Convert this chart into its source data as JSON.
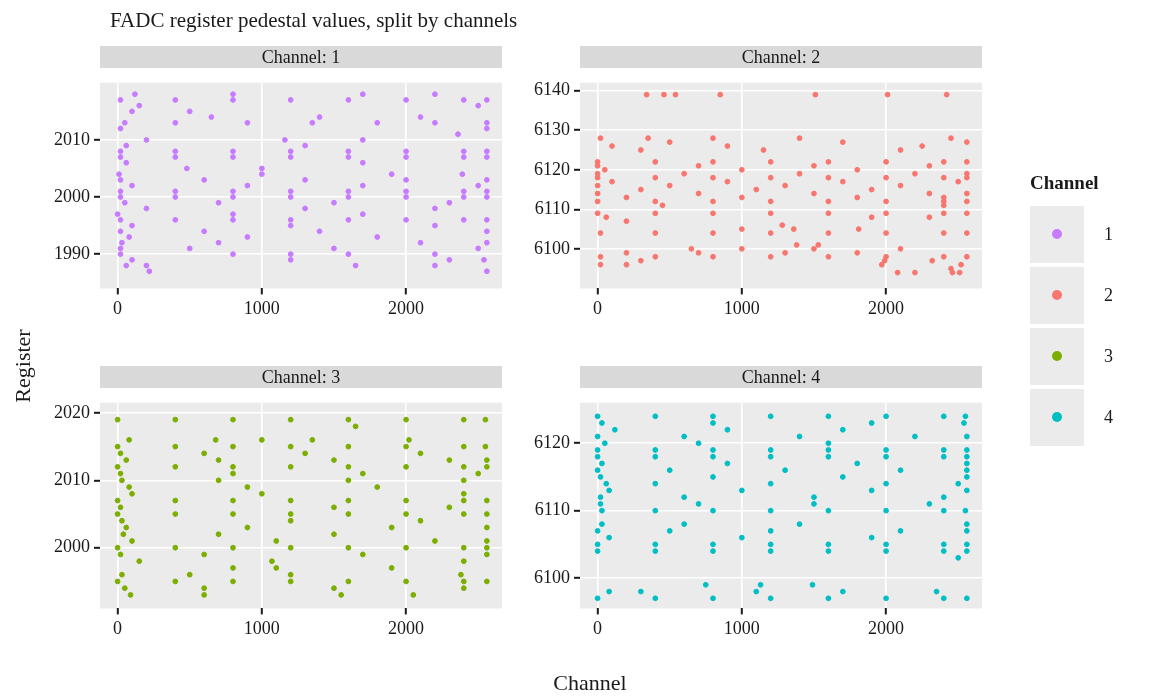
{
  "chart_data": [
    {
      "type": "scatter",
      "title": "FADC register pedestal values, split by channels",
      "subtitle": "Channel: 1",
      "xlabel": "Channel",
      "ylabel": "Register",
      "legend_title": "Channel",
      "legend": "right",
      "grid": true,
      "marker": "circle",
      "xlim": [
        -122,
        2665
      ],
      "xticks": [
        0,
        1000,
        2000
      ],
      "ylim": [
        1984,
        2020
      ],
      "yticks": [
        1990,
        2000,
        2010
      ],
      "series": [
        {
          "name": "1",
          "color": "#c77cff",
          "x": [
            120,
            800,
            1700,
            2200,
            20,
            400,
            800,
            1200,
            1600,
            2000,
            2400,
            2560,
            150,
            2500,
            100,
            500,
            650,
            1400,
            2100,
            50,
            400,
            900,
            1350,
            1800,
            2200,
            2560,
            20,
            2560,
            2360,
            200,
            1160,
            1700,
            60,
            1300,
            20,
            400,
            800,
            1200,
            1600,
            2000,
            2400,
            2560,
            20,
            400,
            800,
            1200,
            1600,
            2000,
            2400,
            2560,
            60,
            1700,
            480,
            1000,
            10,
            1000,
            1900,
            2390,
            20,
            600,
            1300,
            2000,
            2560,
            100,
            900,
            1700,
            2500,
            20,
            400,
            800,
            1200,
            1600,
            2000,
            2400,
            2560,
            20,
            400,
            800,
            1200,
            1600,
            2000,
            2400,
            2560,
            50,
            700,
            1500,
            2300,
            200,
            1300,
            2200,
            0,
            800,
            1700,
            20,
            400,
            800,
            1200,
            1600,
            2000,
            2400,
            2560,
            100,
            1200,
            2200,
            20,
            600,
            1400,
            2560,
            80,
            900,
            1800,
            30,
            700,
            2100,
            2560,
            20,
            500,
            1500,
            2500,
            20,
            800,
            1200,
            1600,
            2200,
            100,
            1200,
            2300,
            2540,
            60,
            200,
            1650,
            2200,
            220,
            2560
          ],
          "values": [
            2018,
            2018,
            2018,
            2018,
            2017,
            2017,
            2017,
            2017,
            2017,
            2017,
            2017,
            2017,
            2016,
            2016,
            2015,
            2015,
            2014,
            2014,
            2014,
            2013,
            2013,
            2013,
            2013,
            2013,
            2013,
            2013,
            2012,
            2012,
            2011,
            2010,
            2010,
            2010,
            2009,
            2009,
            2008,
            2008,
            2008,
            2008,
            2008,
            2008,
            2008,
            2008,
            2007,
            2007,
            2007,
            2007,
            2007,
            2007,
            2007,
            2007,
            2006,
            2006,
            2005,
            2005,
            2004,
            2004,
            2004,
            2004,
            2003,
            2003,
            2003,
            2003,
            2003,
            2002,
            2002,
            2002,
            2002,
            2001,
            2001,
            2001,
            2001,
            2001,
            2001,
            2001,
            2001,
            2000,
            2000,
            2000,
            2000,
            2000,
            2000,
            2000,
            2000,
            1999,
            1999,
            1999,
            1999,
            1998,
            1998,
            1998,
            1997,
            1997,
            1997,
            1996,
            1996,
            1996,
            1996,
            1996,
            1996,
            1996,
            1996,
            1995,
            1995,
            1995,
            1994,
            1994,
            1994,
            1994,
            1993,
            1993,
            1993,
            1992,
            1992,
            1992,
            1992,
            1991,
            1991,
            1991,
            1991,
            1990,
            1990,
            1990,
            1990,
            1990,
            1989,
            1989,
            1989,
            1989,
            1988,
            1988,
            1988,
            1988,
            1987,
            1987
          ]
        }
      ]
    },
    {
      "type": "scatter",
      "subtitle": "Channel: 2",
      "grid": true,
      "marker": "circle",
      "xlim": [
        -122,
        2665
      ],
      "xticks": [
        0,
        1000,
        2000
      ],
      "ylim": [
        6090,
        6142
      ],
      "yticks": [
        6100,
        6110,
        6120,
        6130,
        6140
      ],
      "series": [
        {
          "name": "2",
          "color": "#f8766d",
          "x": [
            340,
            460,
            540,
            850,
            1510,
            2010,
            2420,
            20,
            350,
            800,
            1400,
            2450,
            500,
            1700,
            2560,
            100,
            900,
            2250,
            300,
            1150,
            2100,
            0,
            400,
            800,
            1200,
            1600,
            2000,
            2400,
            2560,
            0,
            700,
            1500,
            2300,
            50,
            1000,
            1800,
            0,
            600,
            1400,
            2200,
            2560,
            0,
            400,
            800,
            1200,
            1600,
            2000,
            2400,
            2560,
            100,
            900,
            1700,
            2500,
            0,
            500,
            1300,
            2100,
            300,
            1100,
            1900,
            0,
            700,
            1500,
            2300,
            2560,
            200,
            1000,
            1800,
            2400,
            0,
            400,
            800,
            1200,
            1600,
            2000,
            2400,
            2560,
            450,
            2400,
            0,
            400,
            800,
            1200,
            1600,
            2000,
            2400,
            2560,
            60,
            1900,
            2300,
            200,
            1280,
            1000,
            1360,
            1810,
            20,
            400,
            800,
            1200,
            1600,
            2000,
            2400,
            2560,
            1380,
            1530,
            650,
            1000,
            1500,
            2100,
            200,
            700,
            1300,
            1800,
            20,
            400,
            800,
            1200,
            1600,
            2000,
            2400,
            2560,
            300,
            1990,
            2320,
            20,
            200,
            1970,
            2520,
            2450,
            2080,
            2200,
            2460,
            2510
          ],
          "values": [
            6139,
            6139,
            6139,
            6139,
            6139,
            6139,
            6139,
            6128,
            6128,
            6128,
            6128,
            6128,
            6127,
            6127,
            6127,
            6126,
            6126,
            6126,
            6125,
            6125,
            6125,
            6122,
            6122,
            6122,
            6122,
            6122,
            6122,
            6122,
            6122,
            6121,
            6121,
            6121,
            6121,
            6120,
            6120,
            6120,
            6119,
            6119,
            6119,
            6119,
            6119,
            6118,
            6118,
            6118,
            6118,
            6118,
            6118,
            6118,
            6118,
            6117,
            6117,
            6117,
            6117,
            6116,
            6116,
            6116,
            6116,
            6115,
            6115,
            6115,
            6114,
            6114,
            6114,
            6114,
            6114,
            6113,
            6113,
            6113,
            6113,
            6112,
            6112,
            6112,
            6112,
            6112,
            6112,
            6112,
            6112,
            6111,
            6111,
            6109,
            6109,
            6109,
            6109,
            6109,
            6109,
            6109,
            6109,
            6108,
            6108,
            6108,
            6107,
            6106,
            6105,
            6105,
            6105,
            6104,
            6104,
            6104,
            6104,
            6104,
            6104,
            6104,
            6104,
            6101,
            6101,
            6100,
            6100,
            6100,
            6100,
            6099,
            6099,
            6099,
            6099,
            6098,
            6098,
            6098,
            6098,
            6098,
            6098,
            6098,
            6098,
            6097,
            6097,
            6097,
            6096,
            6096,
            6096,
            6096,
            6095,
            6094,
            6094,
            6094,
            6094
          ]
        }
      ]
    },
    {
      "type": "scatter",
      "subtitle": "Channel: 3",
      "grid": true,
      "marker": "circle",
      "xlim": [
        -122,
        2665
      ],
      "xticks": [
        0,
        1000,
        2000
      ],
      "ylim": [
        1991,
        2021.5
      ],
      "yticks": [
        2000,
        2010,
        2020
      ],
      "series": [
        {
          "name": "3",
          "color": "#7cae00",
          "x": [
            0,
            400,
            800,
            1200,
            1600,
            2000,
            2400,
            2550,
            1650,
            80,
            680,
            1000,
            1350,
            2020,
            0,
            400,
            800,
            1200,
            1600,
            2000,
            2400,
            2550,
            20,
            600,
            1300,
            2100,
            60,
            700,
            1500,
            2300,
            2560,
            0,
            400,
            800,
            1200,
            1600,
            2000,
            2400,
            2560,
            20,
            800,
            1700,
            2500,
            30,
            700,
            1600,
            2400,
            80,
            900,
            1800,
            100,
            1000,
            2400,
            0,
            400,
            800,
            1200,
            1600,
            2000,
            2400,
            2560,
            20,
            1500,
            2300,
            0,
            400,
            800,
            1200,
            1600,
            2000,
            2400,
            2560,
            30,
            1200,
            2100,
            60,
            900,
            1900,
            2560,
            40,
            700,
            1500,
            100,
            1100,
            2200,
            2560,
            0,
            400,
            800,
            1200,
            1600,
            2000,
            2400,
            2560,
            20,
            600,
            1700,
            2560,
            150,
            1070,
            2400,
            800,
            1100,
            1900,
            30,
            500,
            1200,
            2380,
            0,
            400,
            800,
            1200,
            1600,
            2000,
            2400,
            2560,
            50,
            600,
            1500,
            2400,
            90,
            600,
            1550,
            2050
          ],
          "values": [
            2019,
            2019,
            2019,
            2019,
            2019,
            2019,
            2019,
            2019,
            2018,
            2016,
            2016,
            2016,
            2016,
            2016,
            2015,
            2015,
            2015,
            2015,
            2015,
            2015,
            2015,
            2015,
            2014,
            2014,
            2014,
            2014,
            2013,
            2013,
            2013,
            2013,
            2013,
            2012,
            2012,
            2012,
            2012,
            2012,
            2012,
            2012,
            2012,
            2011,
            2011,
            2011,
            2011,
            2010,
            2010,
            2010,
            2010,
            2009,
            2009,
            2009,
            2008,
            2008,
            2008,
            2007,
            2007,
            2007,
            2007,
            2007,
            2007,
            2007,
            2007,
            2006,
            2006,
            2006,
            2005,
            2005,
            2005,
            2005,
            2005,
            2005,
            2005,
            2005,
            2004,
            2004,
            2004,
            2003,
            2003,
            2003,
            2003,
            2002,
            2002,
            2002,
            2001,
            2001,
            2001,
            2001,
            2000,
            2000,
            2000,
            2000,
            2000,
            2000,
            2000,
            2000,
            1999,
            1999,
            1999,
            1999,
            1998,
            1998,
            1998,
            1997,
            1997,
            1997,
            1996,
            1996,
            1996,
            1996,
            1995,
            1995,
            1995,
            1995,
            1995,
            1995,
            1995,
            1995,
            1994,
            1994,
            1994,
            1994,
            1993,
            1993,
            1993,
            1993
          ]
        }
      ]
    },
    {
      "type": "scatter",
      "subtitle": "Channel: 4",
      "grid": true,
      "marker": "circle",
      "xlim": [
        -122,
        2665
      ],
      "xticks": [
        0,
        1000,
        2000
      ],
      "ylim": [
        6095.5,
        6126
      ],
      "yticks": [
        6100,
        6110,
        6120
      ],
      "series": [
        {
          "name": "4",
          "color": "#00bfc4",
          "x": [
            0,
            400,
            800,
            1200,
            1600,
            2000,
            2400,
            2550,
            30,
            800,
            1900,
            2540,
            120,
            900,
            1700,
            0,
            600,
            1400,
            2200,
            2560,
            50,
            700,
            1600,
            0,
            400,
            800,
            1200,
            1600,
            2000,
            2400,
            2560,
            0,
            400,
            800,
            1200,
            1600,
            2000,
            2400,
            2560,
            30,
            900,
            1800,
            2560,
            0,
            500,
            1300,
            2100,
            2560,
            20,
            800,
            1700,
            2560,
            60,
            400,
            1200,
            2000,
            2500,
            80,
            1000,
            1900,
            2560,
            20,
            600,
            1500,
            2400,
            20,
            700,
            1500,
            2300,
            30,
            400,
            800,
            1200,
            1600,
            2000,
            2400,
            2550,
            30,
            600,
            1400,
            2560,
            0,
            500,
            1200,
            2100,
            2560,
            80,
            1000,
            1900,
            0,
            400,
            800,
            1200,
            1600,
            2000,
            2400,
            2560,
            0,
            400,
            800,
            1200,
            1600,
            2000,
            2400,
            2560,
            2500,
            750,
            1130,
            1490,
            80,
            300,
            1100,
            1700,
            2350,
            0,
            400,
            800,
            1200,
            1600,
            2000,
            2400,
            2560
          ],
          "values": [
            6124,
            6124,
            6124,
            6124,
            6124,
            6124,
            6124,
            6124,
            6123,
            6123,
            6123,
            6123,
            6122,
            6122,
            6122,
            6121,
            6121,
            6121,
            6121,
            6121,
            6120,
            6120,
            6120,
            6119,
            6119,
            6119,
            6119,
            6119,
            6119,
            6119,
            6119,
            6118,
            6118,
            6118,
            6118,
            6118,
            6118,
            6118,
            6118,
            6117,
            6117,
            6117,
            6117,
            6116,
            6116,
            6116,
            6116,
            6116,
            6115,
            6115,
            6115,
            6115,
            6114,
            6114,
            6114,
            6114,
            6114,
            6113,
            6113,
            6113,
            6113,
            6112,
            6112,
            6112,
            6112,
            6111,
            6111,
            6111,
            6111,
            6110,
            6110,
            6110,
            6110,
            6110,
            6110,
            6110,
            6110,
            6108,
            6108,
            6108,
            6108,
            6107,
            6107,
            6107,
            6107,
            6107,
            6106,
            6106,
            6106,
            6105,
            6105,
            6105,
            6105,
            6105,
            6105,
            6105,
            6105,
            6104,
            6104,
            6104,
            6104,
            6104,
            6104,
            6104,
            6104,
            6103,
            6099,
            6099,
            6099,
            6098,
            6098,
            6098,
            6098,
            6098,
            6097,
            6097,
            6097,
            6097,
            6097,
            6097,
            6097,
            6097
          ]
        }
      ]
    }
  ]
}
